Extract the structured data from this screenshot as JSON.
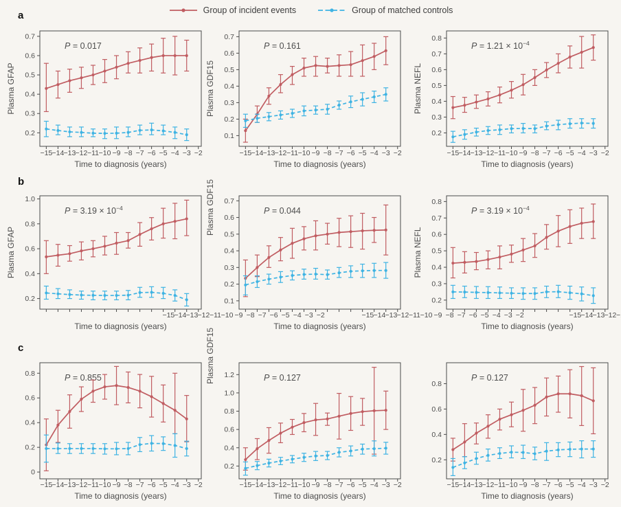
{
  "figure": {
    "background": "#f7f5f1",
    "row_labels": [
      "a",
      "b",
      "c"
    ],
    "legend": [
      {
        "label": "Group of incident events",
        "color": "#c05c61",
        "dash": false
      },
      {
        "label": "Group of matched controls",
        "color": "#3eb3e3",
        "dash": true
      }
    ]
  },
  "chart_data": {
    "type": "line",
    "xlabel": "Time to diagnosis (years)",
    "x": [
      -15,
      -14,
      -13,
      -12,
      -11,
      -10,
      -9,
      -8,
      -7,
      -6,
      -5,
      -4,
      -3
    ],
    "xticks": [
      "−15",
      "−14",
      "−13",
      "−12",
      "−11",
      "−10",
      "−9",
      "−8",
      "−7",
      "−6",
      "−5",
      "−4",
      "−3",
      "−2"
    ],
    "colors": {
      "incident": "#c05c61",
      "controls": "#3eb3e3"
    },
    "series_keys": [
      "incident",
      "controls"
    ],
    "panels": [
      {
        "id": "a1",
        "row": "a",
        "ylabel": "Plasma GFAP",
        "ylabel_pos": "center",
        "p": {
          "text": "0.017",
          "sup": null
        },
        "ylim": [
          0.13,
          0.728
        ],
        "yticks": [
          "0.2",
          "0.3",
          "0.4",
          "0.5",
          "0.6",
          "0.7"
        ],
        "xlabels_shifted": false,
        "incident": {
          "values": [
            0.43,
            0.45,
            0.47,
            0.485,
            0.5,
            0.52,
            0.54,
            0.56,
            0.575,
            0.59,
            0.6,
            0.6,
            0.6
          ],
          "lo": [
            0.31,
            0.38,
            0.41,
            0.43,
            0.45,
            0.46,
            0.48,
            0.51,
            0.51,
            0.52,
            0.51,
            0.5,
            0.52
          ],
          "hi": [
            0.56,
            0.52,
            0.53,
            0.54,
            0.55,
            0.58,
            0.6,
            0.62,
            0.64,
            0.66,
            0.69,
            0.7,
            0.68
          ]
        },
        "controls": {
          "values": [
            0.22,
            0.212,
            0.205,
            0.202,
            0.198,
            0.197,
            0.198,
            0.202,
            0.213,
            0.215,
            0.21,
            0.202,
            0.19
          ],
          "lo": [
            0.18,
            0.19,
            0.18,
            0.18,
            0.18,
            0.17,
            0.17,
            0.18,
            0.19,
            0.19,
            0.19,
            0.17,
            0.16
          ],
          "hi": [
            0.26,
            0.24,
            0.23,
            0.23,
            0.22,
            0.22,
            0.23,
            0.23,
            0.24,
            0.25,
            0.24,
            0.23,
            0.22
          ]
        }
      },
      {
        "id": "a2",
        "row": "a",
        "ylabel": "Plasma GDF15",
        "ylabel_pos": "center",
        "p": {
          "text": "0.161",
          "sup": null
        },
        "ylim": [
          0.035,
          0.735
        ],
        "yticks": [
          "0.1",
          "0.2",
          "0.3",
          "0.4",
          "0.5",
          "0.6",
          "0.7"
        ],
        "xlabels_shifted": false,
        "incident": {
          "values": [
            0.13,
            0.23,
            0.34,
            0.41,
            0.47,
            0.51,
            0.525,
            0.52,
            0.525,
            0.53,
            0.555,
            0.58,
            0.615
          ],
          "lo": [
            0.06,
            0.18,
            0.29,
            0.36,
            0.41,
            0.46,
            0.46,
            0.48,
            0.46,
            0.46,
            0.46,
            0.5,
            0.53
          ],
          "hi": [
            0.2,
            0.28,
            0.39,
            0.47,
            0.52,
            0.57,
            0.58,
            0.57,
            0.59,
            0.61,
            0.65,
            0.66,
            0.7
          ]
        },
        "controls": {
          "values": [
            0.19,
            0.205,
            0.215,
            0.225,
            0.235,
            0.25,
            0.255,
            0.26,
            0.285,
            0.305,
            0.32,
            0.335,
            0.35
          ],
          "lo": [
            0.15,
            0.18,
            0.19,
            0.2,
            0.21,
            0.22,
            0.23,
            0.23,
            0.26,
            0.27,
            0.28,
            0.3,
            0.31
          ],
          "hi": [
            0.23,
            0.23,
            0.24,
            0.25,
            0.26,
            0.28,
            0.28,
            0.29,
            0.31,
            0.34,
            0.36,
            0.37,
            0.39
          ]
        }
      },
      {
        "id": "a3",
        "row": "a",
        "ylabel": "Plasma NEFL",
        "ylabel_pos": "center",
        "p": {
          "text": "1.21 × 10",
          "sup": "−4"
        },
        "ylim": [
          0.115,
          0.845
        ],
        "yticks": [
          "0.2",
          "0.3",
          "0.4",
          "0.5",
          "0.6",
          "0.7",
          "0.8"
        ],
        "xlabels_shifted": false,
        "incident": {
          "values": [
            0.36,
            0.375,
            0.395,
            0.415,
            0.44,
            0.47,
            0.505,
            0.55,
            0.598,
            0.64,
            0.68,
            0.71,
            0.74
          ],
          "lo": [
            0.29,
            0.33,
            0.355,
            0.37,
            0.39,
            0.42,
            0.44,
            0.5,
            0.55,
            0.58,
            0.61,
            0.61,
            0.66
          ],
          "hi": [
            0.43,
            0.425,
            0.44,
            0.46,
            0.49,
            0.525,
            0.57,
            0.6,
            0.645,
            0.7,
            0.75,
            0.81,
            0.82
          ]
        },
        "controls": {
          "values": [
            0.175,
            0.19,
            0.205,
            0.215,
            0.22,
            0.227,
            0.228,
            0.227,
            0.243,
            0.252,
            0.258,
            0.262,
            0.26
          ],
          "lo": [
            0.14,
            0.16,
            0.18,
            0.19,
            0.19,
            0.2,
            0.2,
            0.2,
            0.22,
            0.22,
            0.23,
            0.23,
            0.23
          ],
          "hi": [
            0.21,
            0.22,
            0.23,
            0.24,
            0.25,
            0.25,
            0.26,
            0.25,
            0.27,
            0.28,
            0.29,
            0.29,
            0.29
          ]
        }
      },
      {
        "id": "b1",
        "row": "b",
        "ylabel": "Plasma GFAP",
        "ylabel_pos": "center",
        "p": {
          "text": "3.19 × 10",
          "sup": "−4"
        },
        "ylim": [
          0.115,
          1.025
        ],
        "yticks": [
          "0.2",
          "0.4",
          "0.6",
          "0.8",
          "1.0"
        ],
        "xlabels_shifted": true,
        "incident": {
          "values": [
            0.535,
            0.548,
            0.56,
            0.583,
            0.6,
            0.62,
            0.645,
            0.665,
            0.715,
            0.76,
            0.8,
            0.82,
            0.84
          ],
          "lo": [
            0.4,
            0.46,
            0.5,
            0.51,
            0.535,
            0.55,
            0.555,
            0.605,
            0.62,
            0.67,
            0.685,
            0.68,
            0.705
          ],
          "hi": [
            0.665,
            0.635,
            0.625,
            0.655,
            0.665,
            0.7,
            0.73,
            0.73,
            0.81,
            0.85,
            0.925,
            0.965,
            0.99
          ]
        },
        "controls": {
          "values": [
            0.245,
            0.238,
            0.232,
            0.228,
            0.226,
            0.225,
            0.225,
            0.227,
            0.248,
            0.25,
            0.242,
            0.225,
            0.19
          ],
          "lo": [
            0.195,
            0.2,
            0.2,
            0.195,
            0.19,
            0.19,
            0.19,
            0.19,
            0.21,
            0.21,
            0.2,
            0.18,
            0.14
          ],
          "hi": [
            0.3,
            0.28,
            0.27,
            0.26,
            0.26,
            0.26,
            0.26,
            0.265,
            0.29,
            0.295,
            0.29,
            0.27,
            0.24
          ]
        }
      },
      {
        "id": "b2",
        "row": "b",
        "ylabel": "Plasma GDF15",
        "ylabel_pos": "top",
        "p": {
          "text": "0.044",
          "sup": null
        },
        "ylim": [
          0.05,
          0.73
        ],
        "yticks": [
          "0.1",
          "0.2",
          "0.3",
          "0.4",
          "0.5",
          "0.6",
          "0.7"
        ],
        "xlabels_shifted": true,
        "incident": {
          "values": [
            0.235,
            0.3,
            0.36,
            0.405,
            0.445,
            0.472,
            0.49,
            0.5,
            0.51,
            0.515,
            0.52,
            0.523,
            0.525
          ],
          "lo": [
            0.125,
            0.245,
            0.3,
            0.34,
            0.355,
            0.405,
            0.405,
            0.44,
            0.425,
            0.42,
            0.41,
            0.45,
            0.375
          ],
          "hi": [
            0.345,
            0.375,
            0.43,
            0.48,
            0.535,
            0.545,
            0.58,
            0.565,
            0.595,
            0.61,
            0.625,
            0.6,
            0.675
          ]
        },
        "controls": {
          "values": [
            0.195,
            0.215,
            0.23,
            0.242,
            0.252,
            0.258,
            0.26,
            0.257,
            0.268,
            0.277,
            0.28,
            0.282,
            0.282
          ],
          "lo": [
            0.135,
            0.18,
            0.2,
            0.21,
            0.225,
            0.23,
            0.23,
            0.23,
            0.24,
            0.24,
            0.24,
            0.24,
            0.235
          ],
          "hi": [
            0.25,
            0.25,
            0.26,
            0.275,
            0.28,
            0.29,
            0.295,
            0.285,
            0.3,
            0.31,
            0.32,
            0.325,
            0.33
          ]
        }
      },
      {
        "id": "b3",
        "row": "b",
        "ylabel": "Plasma NEFL",
        "ylabel_pos": "center",
        "p": {
          "text": "3.19 × 10",
          "sup": "−4"
        },
        "ylim": [
          0.145,
          0.835
        ],
        "yticks": [
          "0.2",
          "0.3",
          "0.4",
          "0.5",
          "0.6",
          "0.7",
          "0.8"
        ],
        "xlabels_shifted": true,
        "incident": {
          "values": [
            0.425,
            0.43,
            0.435,
            0.447,
            0.462,
            0.48,
            0.505,
            0.53,
            0.582,
            0.62,
            0.648,
            0.668,
            0.678
          ],
          "lo": [
            0.335,
            0.365,
            0.385,
            0.39,
            0.39,
            0.43,
            0.435,
            0.46,
            0.51,
            0.525,
            0.545,
            0.575,
            0.575
          ],
          "hi": [
            0.52,
            0.495,
            0.49,
            0.5,
            0.53,
            0.535,
            0.575,
            0.605,
            0.66,
            0.715,
            0.75,
            0.76,
            0.785
          ]
        },
        "controls": {
          "values": [
            0.25,
            0.249,
            0.247,
            0.246,
            0.244,
            0.242,
            0.24,
            0.24,
            0.25,
            0.251,
            0.245,
            0.238,
            0.227
          ],
          "lo": [
            0.21,
            0.215,
            0.21,
            0.21,
            0.21,
            0.21,
            0.205,
            0.205,
            0.215,
            0.215,
            0.205,
            0.195,
            0.18
          ],
          "hi": [
            0.29,
            0.285,
            0.283,
            0.282,
            0.28,
            0.275,
            0.275,
            0.275,
            0.285,
            0.29,
            0.285,
            0.28,
            0.275
          ]
        }
      },
      {
        "id": "c1",
        "row": "c",
        "ylabel": "",
        "ylabel_pos": "center",
        "p": {
          "text": "0.855",
          "sup": null
        },
        "ylim": [
          -0.055,
          0.885
        ],
        "yticks": [
          "0",
          "0.2",
          "0.4",
          "0.6",
          "0.8"
        ],
        "xlabels_shifted": false,
        "incident": {
          "values": [
            0.22,
            0.38,
            0.49,
            0.59,
            0.655,
            0.69,
            0.7,
            0.685,
            0.655,
            0.61,
            0.555,
            0.5,
            0.43
          ],
          "lo": [
            0.01,
            0.24,
            0.355,
            0.49,
            0.565,
            0.59,
            0.545,
            0.56,
            0.52,
            0.445,
            0.405,
            0.31,
            0.245
          ],
          "hi": [
            0.43,
            0.5,
            0.625,
            0.69,
            0.745,
            0.79,
            0.855,
            0.81,
            0.79,
            0.775,
            0.705,
            0.8,
            0.62
          ]
        },
        "controls": {
          "values": [
            0.19,
            0.19,
            0.19,
            0.19,
            0.19,
            0.188,
            0.188,
            0.19,
            0.222,
            0.232,
            0.23,
            0.215,
            0.19
          ],
          "lo": [
            0.08,
            0.15,
            0.15,
            0.15,
            0.15,
            0.145,
            0.14,
            0.14,
            0.165,
            0.17,
            0.175,
            0.12,
            0.13
          ],
          "hi": [
            0.3,
            0.235,
            0.23,
            0.23,
            0.23,
            0.23,
            0.24,
            0.24,
            0.28,
            0.295,
            0.285,
            0.31,
            0.25
          ]
        }
      },
      {
        "id": "c2",
        "row": "c",
        "ylabel": "Plasma GDF15",
        "ylabel_pos": "above",
        "p": {
          "text": "0.127",
          "sup": null
        },
        "ylim": [
          0.06,
          1.33
        ],
        "yticks": [
          "0.2",
          "0.4",
          "0.6",
          "0.8",
          "1.0",
          "1.2"
        ],
        "xlabels_shifted": false,
        "incident": {
          "values": [
            0.27,
            0.39,
            0.48,
            0.56,
            0.625,
            0.675,
            0.705,
            0.715,
            0.745,
            0.775,
            0.795,
            0.805,
            0.81
          ],
          "lo": [
            0.155,
            0.27,
            0.34,
            0.455,
            0.545,
            0.575,
            0.535,
            0.645,
            0.495,
            0.59,
            0.645,
            0.33,
            0.6
          ],
          "hi": [
            0.4,
            0.5,
            0.62,
            0.67,
            0.71,
            0.775,
            0.885,
            0.78,
            0.995,
            0.96,
            0.94,
            1.28,
            1.02
          ]
        },
        "controls": {
          "values": [
            0.175,
            0.205,
            0.232,
            0.255,
            0.275,
            0.295,
            0.31,
            0.315,
            0.35,
            0.365,
            0.385,
            0.39,
            0.395
          ],
          "lo": [
            0.1,
            0.16,
            0.19,
            0.215,
            0.235,
            0.25,
            0.26,
            0.27,
            0.3,
            0.31,
            0.33,
            0.31,
            0.33
          ],
          "hi": [
            0.245,
            0.25,
            0.275,
            0.295,
            0.315,
            0.34,
            0.36,
            0.36,
            0.4,
            0.42,
            0.44,
            0.475,
            0.46
          ]
        }
      },
      {
        "id": "c3",
        "row": "c",
        "ylabel": "",
        "ylabel_pos": "center",
        "p": {
          "text": "0.127",
          "sup": null
        },
        "ylim": [
          0.05,
          0.965
        ],
        "yticks": [
          "0.2",
          "0.4",
          "0.6",
          "0.8"
        ],
        "xlabels_shifted": false,
        "incident": {
          "values": [
            0.28,
            0.34,
            0.41,
            0.465,
            0.52,
            0.555,
            0.59,
            0.63,
            0.695,
            0.72,
            0.72,
            0.705,
            0.665
          ],
          "lo": [
            0.19,
            0.225,
            0.325,
            0.37,
            0.435,
            0.46,
            0.425,
            0.485,
            0.545,
            0.575,
            0.53,
            0.47,
            0.405
          ],
          "hi": [
            0.37,
            0.485,
            0.49,
            0.555,
            0.6,
            0.655,
            0.755,
            0.77,
            0.845,
            0.86,
            0.91,
            0.935,
            0.925
          ]
        },
        "controls": {
          "values": [
            0.14,
            0.175,
            0.21,
            0.235,
            0.25,
            0.26,
            0.258,
            0.248,
            0.268,
            0.278,
            0.283,
            0.285,
            0.285
          ],
          "lo": [
            0.075,
            0.13,
            0.165,
            0.19,
            0.21,
            0.215,
            0.21,
            0.2,
            0.195,
            0.225,
            0.225,
            0.215,
            0.22
          ],
          "hi": [
            0.21,
            0.225,
            0.26,
            0.285,
            0.295,
            0.31,
            0.315,
            0.3,
            0.335,
            0.335,
            0.34,
            0.35,
            0.35
          ]
        }
      }
    ]
  }
}
